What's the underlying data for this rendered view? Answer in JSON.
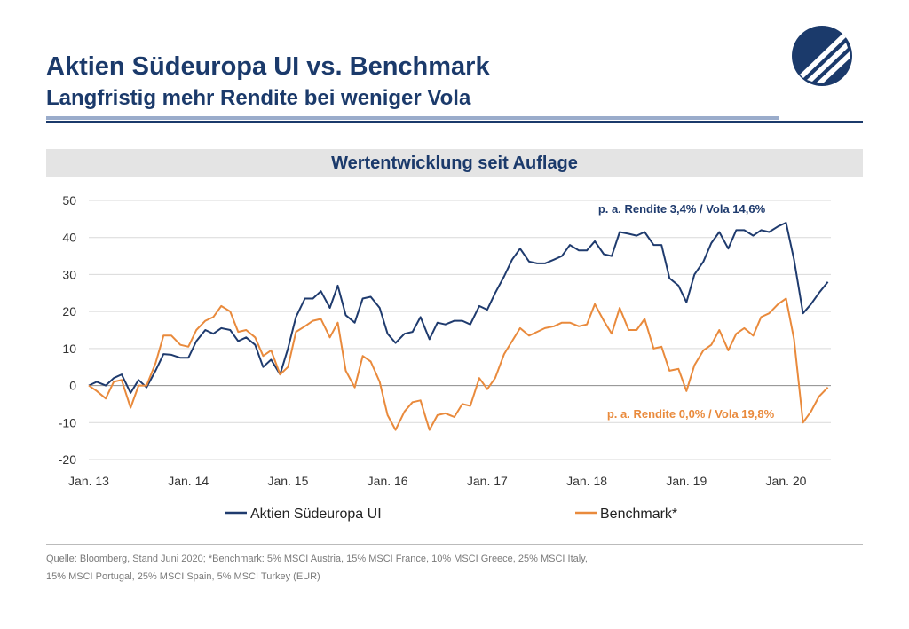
{
  "header": {
    "title": "Aktien Südeuropa UI vs. Benchmark",
    "subtitle": "Langfristig mehr Rendite bei weniger Vola"
  },
  "footnote": {
    "line1": "Quelle: Bloomberg, Stand Juni 2020; *Benchmark: 5% MSCI Austria, 15% MSCI France, 10% MSCI Greece, 25% MSCI Italy,",
    "line2": "15% MSCI Portugal, 25% MSCI Spain, 5% MSCI Turkey (EUR)"
  },
  "colors": {
    "navy": "#1b3a6b",
    "fund": "#1f3b6e",
    "benchmark": "#e98a3c",
    "grid": "#d9d9d9",
    "header_bg": "#e4e4e4"
  },
  "chart_data": {
    "type": "line",
    "title": "Wertentwicklung seit Auflage",
    "xlabel": "",
    "ylabel": "",
    "ylim": [
      -20,
      50
    ],
    "yticks": [
      -20,
      -10,
      0,
      10,
      20,
      30,
      40,
      50
    ],
    "xlim": [
      2013.0,
      2020.45
    ],
    "xticks": [
      {
        "x": 2013.0,
        "label": "Jan. 13"
      },
      {
        "x": 2014.0,
        "label": "Jan. 14"
      },
      {
        "x": 2015.0,
        "label": "Jan. 15"
      },
      {
        "x": 2016.0,
        "label": "Jan. 16"
      },
      {
        "x": 2017.0,
        "label": "Jan. 17"
      },
      {
        "x": 2018.0,
        "label": "Jan. 18"
      },
      {
        "x": 2019.0,
        "label": "Jan. 19"
      },
      {
        "x": 2020.0,
        "label": "Jan. 20"
      }
    ],
    "grid": true,
    "legend_position": "bottom",
    "series": [
      {
        "name": "Aktien Südeuropa UI",
        "color": "#1f3b6e",
        "annotation": "p. a. Rendite 3,4% / Vola 14,6%",
        "points": [
          [
            2013.0,
            0
          ],
          [
            2013.08,
            1
          ],
          [
            2013.17,
            0
          ],
          [
            2013.25,
            2
          ],
          [
            2013.33,
            3
          ],
          [
            2013.42,
            -2
          ],
          [
            2013.5,
            1.5
          ],
          [
            2013.58,
            -0.5
          ],
          [
            2013.67,
            4
          ],
          [
            2013.75,
            8.5
          ],
          [
            2013.83,
            8.3
          ],
          [
            2013.92,
            7.5
          ],
          [
            2014.0,
            7.5
          ],
          [
            2014.08,
            12
          ],
          [
            2014.17,
            15
          ],
          [
            2014.25,
            14
          ],
          [
            2014.33,
            15.5
          ],
          [
            2014.42,
            15
          ],
          [
            2014.5,
            12
          ],
          [
            2014.58,
            13
          ],
          [
            2014.67,
            11
          ],
          [
            2014.75,
            5
          ],
          [
            2014.83,
            7
          ],
          [
            2014.92,
            3
          ],
          [
            2015.0,
            10
          ],
          [
            2015.08,
            18.5
          ],
          [
            2015.17,
            23.5
          ],
          [
            2015.25,
            23.5
          ],
          [
            2015.33,
            25.5
          ],
          [
            2015.42,
            21
          ],
          [
            2015.5,
            27
          ],
          [
            2015.58,
            19
          ],
          [
            2015.67,
            17
          ],
          [
            2015.75,
            23.5
          ],
          [
            2015.83,
            24
          ],
          [
            2015.92,
            21
          ],
          [
            2016.0,
            14
          ],
          [
            2016.08,
            11.5
          ],
          [
            2016.17,
            14
          ],
          [
            2016.25,
            14.5
          ],
          [
            2016.33,
            18.5
          ],
          [
            2016.42,
            12.5
          ],
          [
            2016.5,
            17
          ],
          [
            2016.58,
            16.5
          ],
          [
            2016.67,
            17.5
          ],
          [
            2016.75,
            17.5
          ],
          [
            2016.83,
            16.5
          ],
          [
            2016.92,
            21.5
          ],
          [
            2017.0,
            20.5
          ],
          [
            2017.08,
            25
          ],
          [
            2017.17,
            29.5
          ],
          [
            2017.25,
            34
          ],
          [
            2017.33,
            37
          ],
          [
            2017.42,
            33.5
          ],
          [
            2017.5,
            33
          ],
          [
            2017.58,
            33
          ],
          [
            2017.67,
            34
          ],
          [
            2017.75,
            35
          ],
          [
            2017.83,
            38
          ],
          [
            2017.92,
            36.5
          ],
          [
            2018.0,
            36.5
          ],
          [
            2018.08,
            39
          ],
          [
            2018.17,
            35.5
          ],
          [
            2018.25,
            35
          ],
          [
            2018.33,
            41.5
          ],
          [
            2018.42,
            41
          ],
          [
            2018.5,
            40.5
          ],
          [
            2018.58,
            41.5
          ],
          [
            2018.67,
            38
          ],
          [
            2018.75,
            38
          ],
          [
            2018.83,
            29
          ],
          [
            2018.92,
            27
          ],
          [
            2019.0,
            22.5
          ],
          [
            2019.08,
            30
          ],
          [
            2019.17,
            33.5
          ],
          [
            2019.25,
            38.5
          ],
          [
            2019.33,
            41.5
          ],
          [
            2019.42,
            37
          ],
          [
            2019.5,
            42
          ],
          [
            2019.58,
            42
          ],
          [
            2019.67,
            40.5
          ],
          [
            2019.75,
            42
          ],
          [
            2019.83,
            41.5
          ],
          [
            2019.92,
            43
          ],
          [
            2020.0,
            44
          ],
          [
            2020.08,
            34
          ],
          [
            2020.17,
            19.5
          ],
          [
            2020.25,
            22
          ],
          [
            2020.33,
            25
          ],
          [
            2020.42,
            28
          ]
        ]
      },
      {
        "name": "Benchmark*",
        "color": "#e98a3c",
        "annotation": "p. a. Rendite 0,0% / Vola 19,8%",
        "points": [
          [
            2013.0,
            0
          ],
          [
            2013.08,
            -1.5
          ],
          [
            2013.17,
            -3.5
          ],
          [
            2013.25,
            1
          ],
          [
            2013.33,
            1.5
          ],
          [
            2013.42,
            -6
          ],
          [
            2013.5,
            0
          ],
          [
            2013.58,
            0
          ],
          [
            2013.67,
            6
          ],
          [
            2013.75,
            13.5
          ],
          [
            2013.83,
            13.5
          ],
          [
            2013.92,
            11
          ],
          [
            2014.0,
            10.5
          ],
          [
            2014.08,
            15
          ],
          [
            2014.17,
            17.5
          ],
          [
            2014.25,
            18.5
          ],
          [
            2014.33,
            21.5
          ],
          [
            2014.42,
            20
          ],
          [
            2014.5,
            14.5
          ],
          [
            2014.58,
            15
          ],
          [
            2014.67,
            13
          ],
          [
            2014.75,
            8
          ],
          [
            2014.83,
            9.5
          ],
          [
            2014.92,
            3
          ],
          [
            2015.0,
            5
          ],
          [
            2015.08,
            14.5
          ],
          [
            2015.17,
            16
          ],
          [
            2015.25,
            17.5
          ],
          [
            2015.33,
            18
          ],
          [
            2015.42,
            13
          ],
          [
            2015.5,
            17
          ],
          [
            2015.58,
            4
          ],
          [
            2015.67,
            -0.5
          ],
          [
            2015.75,
            8
          ],
          [
            2015.83,
            6.5
          ],
          [
            2015.92,
            1
          ],
          [
            2016.0,
            -8
          ],
          [
            2016.08,
            -12
          ],
          [
            2016.17,
            -7
          ],
          [
            2016.25,
            -4.5
          ],
          [
            2016.33,
            -4
          ],
          [
            2016.42,
            -12
          ],
          [
            2016.5,
            -8
          ],
          [
            2016.58,
            -7.5
          ],
          [
            2016.67,
            -8.5
          ],
          [
            2016.75,
            -5
          ],
          [
            2016.83,
            -5.5
          ],
          [
            2016.92,
            2
          ],
          [
            2017.0,
            -1
          ],
          [
            2017.08,
            2
          ],
          [
            2017.17,
            8.5
          ],
          [
            2017.25,
            12
          ],
          [
            2017.33,
            15.5
          ],
          [
            2017.42,
            13.5
          ],
          [
            2017.5,
            14.5
          ],
          [
            2017.58,
            15.5
          ],
          [
            2017.67,
            16
          ],
          [
            2017.75,
            17
          ],
          [
            2017.83,
            17
          ],
          [
            2017.92,
            16
          ],
          [
            2018.0,
            16.5
          ],
          [
            2018.08,
            22
          ],
          [
            2018.17,
            17.5
          ],
          [
            2018.25,
            14
          ],
          [
            2018.33,
            21
          ],
          [
            2018.42,
            15
          ],
          [
            2018.5,
            15
          ],
          [
            2018.58,
            18
          ],
          [
            2018.67,
            10
          ],
          [
            2018.75,
            10.5
          ],
          [
            2018.83,
            4
          ],
          [
            2018.92,
            4.5
          ],
          [
            2019.0,
            -1.5
          ],
          [
            2019.08,
            5.5
          ],
          [
            2019.17,
            9.5
          ],
          [
            2019.25,
            11
          ],
          [
            2019.33,
            15
          ],
          [
            2019.42,
            9.5
          ],
          [
            2019.5,
            14
          ],
          [
            2019.58,
            15.5
          ],
          [
            2019.67,
            13.5
          ],
          [
            2019.75,
            18.5
          ],
          [
            2019.83,
            19.5
          ],
          [
            2019.92,
            22
          ],
          [
            2020.0,
            23.5
          ],
          [
            2020.08,
            12.5
          ],
          [
            2020.17,
            -10
          ],
          [
            2020.25,
            -7
          ],
          [
            2020.33,
            -3
          ],
          [
            2020.42,
            -0.5
          ]
        ]
      }
    ]
  }
}
